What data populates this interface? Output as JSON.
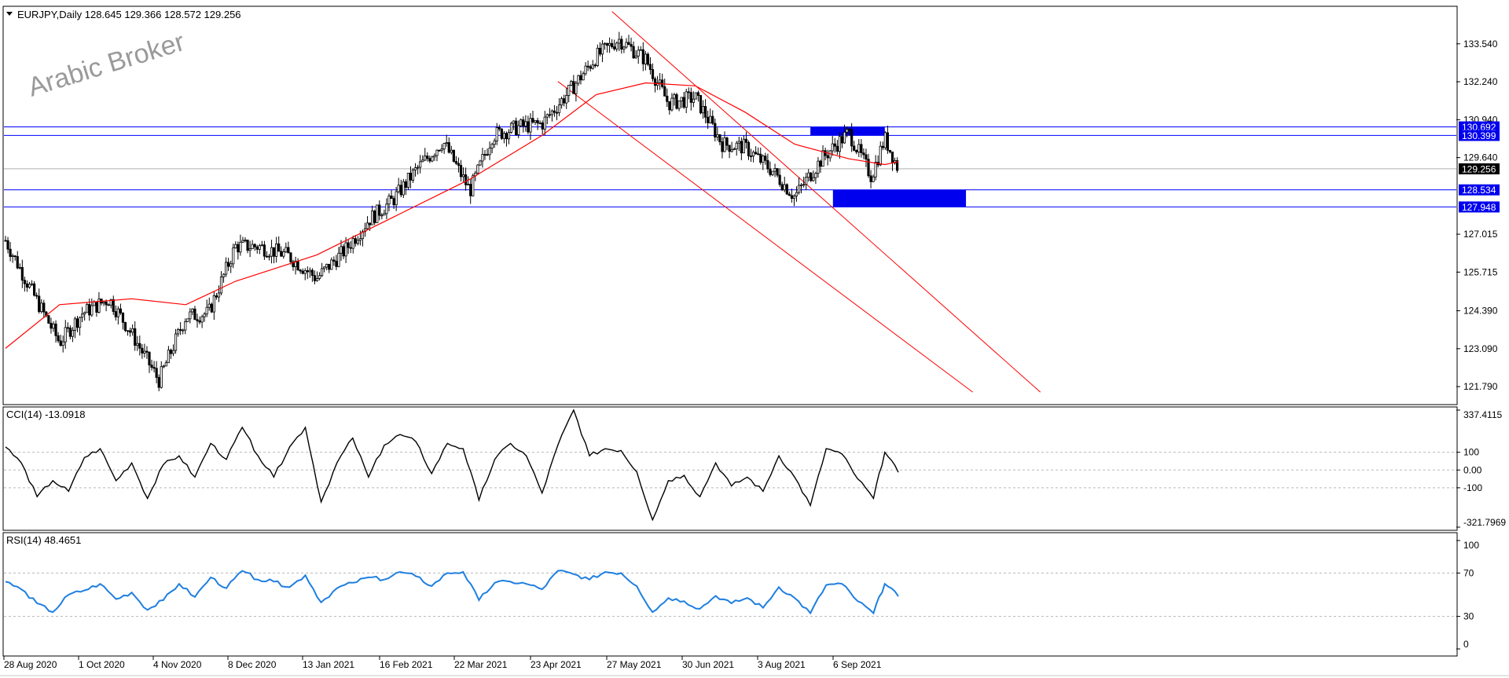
{
  "chart_data": {
    "type": "candlestick",
    "instrument_header": "EURJPY,Daily  128.645 129.366 128.572 129.256",
    "watermark": "Arabic Broker",
    "price_axis": {
      "ticks": [
        "133.540",
        "132.240",
        "130.940",
        "129.640",
        "127.015",
        "125.715",
        "124.390",
        "123.090",
        "121.790"
      ],
      "ylim": [
        121.2,
        134.8
      ]
    },
    "price_tags": [
      {
        "label": "130.692",
        "value": 130.692,
        "style": "blue"
      },
      {
        "label": "130.399",
        "value": 130.399,
        "style": "blue"
      },
      {
        "label": "129.256",
        "value": 129.256,
        "style": "black"
      },
      {
        "label": "128.534",
        "value": 128.534,
        "style": "blue"
      },
      {
        "label": "127.948",
        "value": 127.948,
        "style": "blue"
      }
    ],
    "horizontal_lines": [
      130.692,
      130.399,
      128.534,
      127.948
    ],
    "current_price_line": 129.256,
    "zones": [
      {
        "date_start": "2021-08-20",
        "date_end": "2021-09-22",
        "top": 130.692,
        "bottom": 130.399
      },
      {
        "date_start": "2021-08-30",
        "date_end": "2021-10-28",
        "top": 128.534,
        "bottom": 127.948
      }
    ],
    "channel_lines": [
      {
        "from": {
          "date": "2021-05-24",
          "value": 134.65
        },
        "to": {
          "date": "2021-11-30",
          "value": 121.6
        }
      },
      {
        "from": {
          "date": "2021-04-30",
          "value": 132.25
        },
        "to": {
          "date": "2021-10-31",
          "value": 121.6
        }
      }
    ],
    "date_axis": {
      "labels": [
        "28 Aug 2020",
        "1 Oct 2020",
        "4 Nov 2020",
        "8 Dec 2020",
        "13 Jan 2021",
        "16 Feb 2021",
        "22 Mar 2021",
        "23 Apr 2021",
        "27 May 2021",
        "30 Jun 2021",
        "3 Aug 2021",
        "6 Sep 2021"
      ]
    },
    "candles": {
      "dates": [
        "2020-08-28",
        "2020-09-09",
        "2020-09-21",
        "2020-10-01",
        "2020-10-13",
        "2020-10-23",
        "2020-11-04",
        "2020-11-16",
        "2020-11-26",
        "2020-12-08",
        "2020-12-18",
        "2020-12-31",
        "2021-01-13",
        "2021-01-26",
        "2021-02-05",
        "2021-02-16",
        "2021-02-26",
        "2021-03-10",
        "2021-03-22",
        "2021-04-01",
        "2021-04-13",
        "2021-04-23",
        "2021-05-05",
        "2021-05-17",
        "2021-05-27",
        "2021-06-08",
        "2021-06-18",
        "2021-06-30",
        "2021-07-12",
        "2021-07-22",
        "2021-08-03",
        "2021-08-13",
        "2021-08-25",
        "2021-09-06",
        "2021-09-16",
        "2021-09-22",
        "2021-09-28"
      ],
      "close": [
        126.8,
        125.0,
        123.3,
        124.3,
        124.8,
        123.6,
        122.0,
        124.2,
        124.3,
        126.6,
        126.6,
        126.3,
        125.5,
        126.5,
        127.5,
        128.2,
        129.2,
        130.2,
        128.5,
        130.4,
        130.7,
        130.8,
        131.9,
        133.1,
        133.7,
        133.0,
        131.5,
        131.7,
        130.1,
        130.0,
        129.2,
        128.3,
        129.6,
        130.5,
        129.0,
        130.3,
        129.256
      ]
    },
    "moving_average": {
      "dates": [
        "2020-08-28",
        "2020-09-21",
        "2020-10-23",
        "2020-11-16",
        "2020-12-08",
        "2021-01-13",
        "2021-02-16",
        "2021-03-22",
        "2021-04-23",
        "2021-05-17",
        "2021-06-08",
        "2021-06-30",
        "2021-07-22",
        "2021-08-13",
        "2021-09-06",
        "2021-09-22",
        "2021-09-28"
      ],
      "values": [
        123.1,
        124.6,
        124.8,
        124.6,
        125.4,
        126.3,
        127.6,
        128.9,
        130.4,
        131.8,
        132.2,
        132.1,
        131.2,
        130.1,
        129.6,
        129.4,
        129.5
      ]
    },
    "indicators": [
      {
        "name": "CCI(14)",
        "header": "CCI(14) -13.0918",
        "ticks": [
          "337.4115",
          "100",
          "0.00",
          "-100",
          "-321.7969"
        ],
        "levels": [
          100,
          0,
          -100
        ],
        "ylim": [
          -321.7969,
          337.4115
        ],
        "color": "#000000",
        "dates": [
          "2020-08-28",
          "2020-09-04",
          "2020-09-11",
          "2020-09-18",
          "2020-09-25",
          "2020-10-02",
          "2020-10-09",
          "2020-10-16",
          "2020-10-23",
          "2020-10-30",
          "2020-11-06",
          "2020-11-13",
          "2020-11-20",
          "2020-11-27",
          "2020-12-04",
          "2020-12-11",
          "2020-12-18",
          "2020-12-25",
          "2021-01-01",
          "2021-01-08",
          "2021-01-15",
          "2021-01-22",
          "2021-01-29",
          "2021-02-05",
          "2021-02-12",
          "2021-02-19",
          "2021-02-26",
          "2021-03-05",
          "2021-03-12",
          "2021-03-19",
          "2021-03-26",
          "2021-04-02",
          "2021-04-09",
          "2021-04-16",
          "2021-04-23",
          "2021-04-30",
          "2021-05-07",
          "2021-05-14",
          "2021-05-21",
          "2021-05-28",
          "2021-06-04",
          "2021-06-11",
          "2021-06-18",
          "2021-06-25",
          "2021-07-02",
          "2021-07-09",
          "2021-07-16",
          "2021-07-23",
          "2021-07-30",
          "2021-08-06",
          "2021-08-13",
          "2021-08-20",
          "2021-08-27",
          "2021-09-03",
          "2021-09-10",
          "2021-09-17",
          "2021-09-22",
          "2021-09-28"
        ],
        "values": [
          130,
          40,
          -150,
          -60,
          -120,
          70,
          120,
          -60,
          40,
          -160,
          30,
          80,
          -40,
          150,
          60,
          240,
          80,
          -40,
          130,
          240,
          -180,
          40,
          180,
          -40,
          140,
          200,
          160,
          -20,
          150,
          120,
          -170,
          60,
          150,
          80,
          -130,
          140,
          340,
          80,
          120,
          110,
          -10,
          -280,
          -60,
          -30,
          -150,
          40,
          -90,
          -40,
          -120,
          80,
          -40,
          -200,
          120,
          90,
          -50,
          -160,
          100,
          -13.1
        ]
      },
      {
        "name": "RSI(14)",
        "header": "RSI(14) 48.4651",
        "ticks": [
          "100",
          "70",
          "30",
          "0"
        ],
        "levels": [
          70,
          30
        ],
        "ylim": [
          0,
          100
        ],
        "color": "#1e7fe0",
        "dates": [
          "2020-08-28",
          "2020-09-04",
          "2020-09-11",
          "2020-09-18",
          "2020-09-25",
          "2020-10-02",
          "2020-10-09",
          "2020-10-16",
          "2020-10-23",
          "2020-10-30",
          "2020-11-06",
          "2020-11-13",
          "2020-11-20",
          "2020-11-27",
          "2020-12-04",
          "2020-12-11",
          "2020-12-18",
          "2020-12-25",
          "2021-01-01",
          "2021-01-08",
          "2021-01-15",
          "2021-01-22",
          "2021-01-29",
          "2021-02-05",
          "2021-02-12",
          "2021-02-19",
          "2021-02-26",
          "2021-03-05",
          "2021-03-12",
          "2021-03-19",
          "2021-03-26",
          "2021-04-02",
          "2021-04-09",
          "2021-04-16",
          "2021-04-23",
          "2021-04-30",
          "2021-05-07",
          "2021-05-14",
          "2021-05-21",
          "2021-05-28",
          "2021-06-04",
          "2021-06-11",
          "2021-06-18",
          "2021-06-25",
          "2021-07-02",
          "2021-07-09",
          "2021-07-16",
          "2021-07-23",
          "2021-07-30",
          "2021-08-06",
          "2021-08-13",
          "2021-08-20",
          "2021-08-27",
          "2021-09-03",
          "2021-09-10",
          "2021-09-17",
          "2021-09-22",
          "2021-09-28"
        ],
        "values": [
          62,
          55,
          42,
          34,
          50,
          54,
          60,
          46,
          52,
          36,
          45,
          60,
          48,
          66,
          56,
          72,
          64,
          62,
          57,
          68,
          43,
          56,
          61,
          66,
          64,
          71,
          67,
          58,
          70,
          71,
          45,
          61,
          62,
          60,
          55,
          72,
          69,
          64,
          71,
          70,
          58,
          34,
          47,
          44,
          37,
          49,
          42,
          47,
          38,
          57,
          47,
          33,
          59,
          60,
          44,
          33,
          60,
          48.5
        ]
      }
    ]
  }
}
